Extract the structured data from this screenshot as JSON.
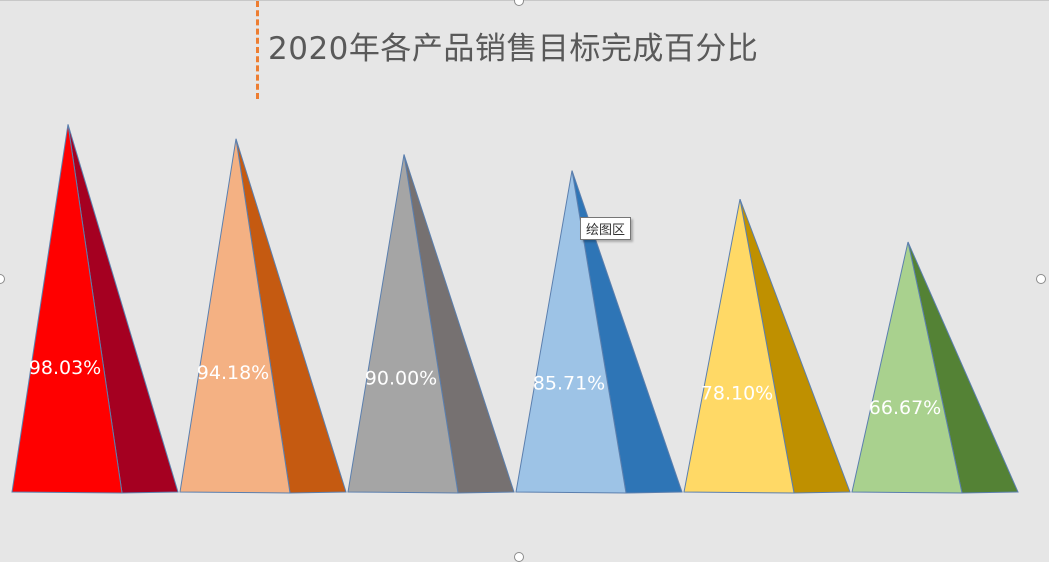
{
  "chart_data": {
    "type": "bar",
    "title": "2020年各产品销售目标完成百分比",
    "categories": [
      "",
      "",
      "",
      "",
      "",
      ""
    ],
    "values": [
      98.03,
      94.18,
      90.0,
      85.71,
      78.1,
      66.67
    ],
    "labels": [
      "98.03%",
      "94.18%",
      "90.00%",
      "85.71%",
      "78.10%",
      "66.67%"
    ],
    "ylim": [
      0,
      100
    ],
    "grid": false,
    "legend": "none",
    "mark_shape": "pyramid",
    "colors": [
      {
        "front": "#ff0000",
        "side": "#a50021"
      },
      {
        "front": "#f4b183",
        "side": "#c55a11"
      },
      {
        "front": "#a5a5a5",
        "side": "#767171"
      },
      {
        "front": "#9dc3e6",
        "side": "#2e75b6"
      },
      {
        "front": "#ffd966",
        "side": "#bf9000"
      },
      {
        "front": "#a9d18e",
        "side": "#548235"
      }
    ],
    "label_color": "#ffffff"
  },
  "tooltip": {
    "text": "绘图区"
  }
}
